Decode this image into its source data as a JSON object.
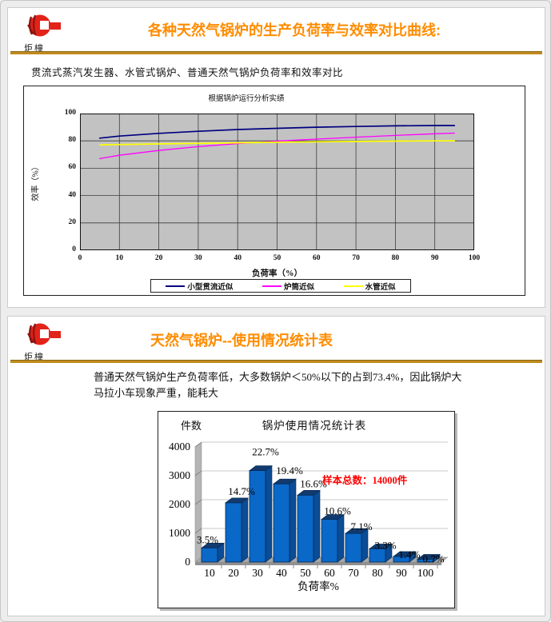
{
  "slide1": {
    "logo_text": "炬橦",
    "title": "各种天然气锅炉的生产负荷率与效率对比曲线:",
    "subtitle": "贯流式蒸汽发生器、水管式锅炉、普通天然气锅炉负荷率和效率对比"
  },
  "slide2": {
    "logo_text": "炬橦",
    "title": "天然气锅炉--使用情况统计表",
    "paragraph": "普通天然气锅炉生产负荷率低，大多数锅炉＜50%以下的占到73.4%，因此锅炉大马拉小车现象严重，能耗大"
  },
  "colors": {
    "title_orange": "#FF8C00",
    "separator_gold": "#C18A1E",
    "logo_red": "#E2231A",
    "plot_gray": "#c2c2c2",
    "bar_blue": "#0a68c8",
    "annotation_red": "#FF0000"
  },
  "chart_data": [
    {
      "type": "line",
      "title": "根据锅炉运行分析实绩",
      "xlabel": "负荷率（%）",
      "ylabel": "效率（%）",
      "xlim": [
        0,
        100
      ],
      "ylim": [
        0,
        100
      ],
      "x_ticks": [
        0,
        10,
        20,
        30,
        40,
        50,
        60,
        70,
        80,
        90,
        100
      ],
      "y_ticks": [
        0,
        20,
        40,
        60,
        80,
        100
      ],
      "grid": true,
      "plot_bg": "#c2c2c2",
      "legend_position": "bottom",
      "series": [
        {
          "name": "小型贯流近似",
          "color": "#00007F",
          "points": [
            [
              5,
              82
            ],
            [
              10,
              83.5
            ],
            [
              20,
              85.5
            ],
            [
              30,
              87
            ],
            [
              40,
              88.3
            ],
            [
              50,
              89.2
            ],
            [
              60,
              90
            ],
            [
              70,
              90.5
            ],
            [
              80,
              91
            ],
            [
              90,
              91.2
            ],
            [
              95,
              91.2
            ]
          ]
        },
        {
          "name": "炉筒近似",
          "color": "#FF00FF",
          "points": [
            [
              5,
              67
            ],
            [
              10,
              69.5
            ],
            [
              20,
              73
            ],
            [
              30,
              75.8
            ],
            [
              40,
              78
            ],
            [
              50,
              79.8
            ],
            [
              60,
              81.3
            ],
            [
              70,
              82.7
            ],
            [
              80,
              84
            ],
            [
              90,
              85.2
            ],
            [
              95,
              85.7
            ]
          ]
        },
        {
          "name": "水管近似",
          "color": "#FFFF00",
          "points": [
            [
              5,
              77
            ],
            [
              10,
              77.3
            ],
            [
              20,
              77.8
            ],
            [
              30,
              78.2
            ],
            [
              40,
              78.6
            ],
            [
              50,
              79
            ],
            [
              60,
              79.3
            ],
            [
              70,
              79.6
            ],
            [
              80,
              79.8
            ],
            [
              90,
              80
            ],
            [
              95,
              80
            ]
          ]
        }
      ]
    },
    {
      "type": "bar",
      "title": "锅炉使用情况统计表",
      "xlabel": "负荷率%",
      "ylabel": "件数",
      "categories": [
        "10",
        "20",
        "30",
        "40",
        "50",
        "60",
        "70",
        "80",
        "90",
        "100"
      ],
      "values": [
        490,
        2058,
        3178,
        2716,
        2324,
        1484,
        994,
        462,
        196,
        98
      ],
      "bar_labels": [
        "3.5%",
        "14.7%",
        "22.7%",
        "19.4%",
        "16.6%",
        "10.6%",
        "7.1%",
        "3.3%",
        "1.4%",
        "0.7%"
      ],
      "annotation": "样本总数：14000件",
      "sample_total": "14000件",
      "ylim": [
        0,
        4000
      ],
      "y_ticks": [
        0,
        1000,
        2000,
        3000,
        4000
      ],
      "grid": true,
      "bar_color": "#0a68c8",
      "style": "3d"
    }
  ]
}
